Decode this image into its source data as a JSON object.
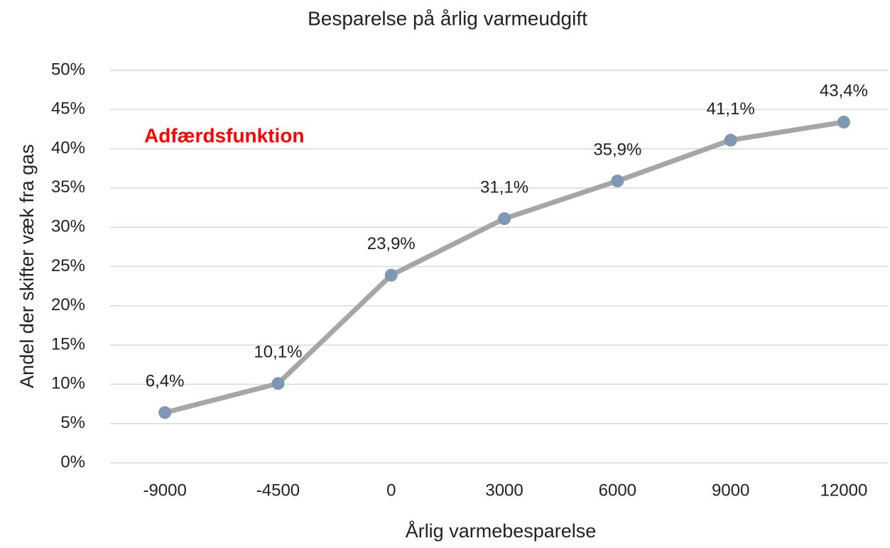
{
  "chart_data": {
    "type": "line",
    "title": "Besparelse på årlig varmeudgift",
    "x_label": "Årlig varmebesparelse",
    "y_label": "Andel der skifter væk fra gas",
    "annotation": "Adfærdsfunktion",
    "annotation_color": "#ff0000",
    "categories": [
      "-9000",
      "-4500",
      "0",
      "3000",
      "6000",
      "9000",
      "12000"
    ],
    "series": [
      {
        "name": "Andel der skifter væk fra gas",
        "color": "#a6a6a6",
        "marker_color": "#7f96b5",
        "values": [
          6.4,
          10.1,
          23.9,
          31.1,
          35.9,
          41.1,
          43.4
        ],
        "value_labels": [
          "6,4%",
          "10,1%",
          "23,9%",
          "31,1%",
          "35,9%",
          "41,1%",
          "43,4%"
        ]
      }
    ],
    "ylim": [
      0,
      50
    ],
    "yticks": [
      {
        "value": 0,
        "label": "0%"
      },
      {
        "value": 5,
        "label": "5%"
      },
      {
        "value": 10,
        "label": "10%"
      },
      {
        "value": 15,
        "label": "15%"
      },
      {
        "value": 20,
        "label": "20%"
      },
      {
        "value": 25,
        "label": "25%"
      },
      {
        "value": 30,
        "label": "30%"
      },
      {
        "value": 35,
        "label": "35%"
      },
      {
        "value": 40,
        "label": "40%"
      },
      {
        "value": 45,
        "label": "45%"
      },
      {
        "value": 50,
        "label": "50%"
      }
    ],
    "grid": true
  }
}
